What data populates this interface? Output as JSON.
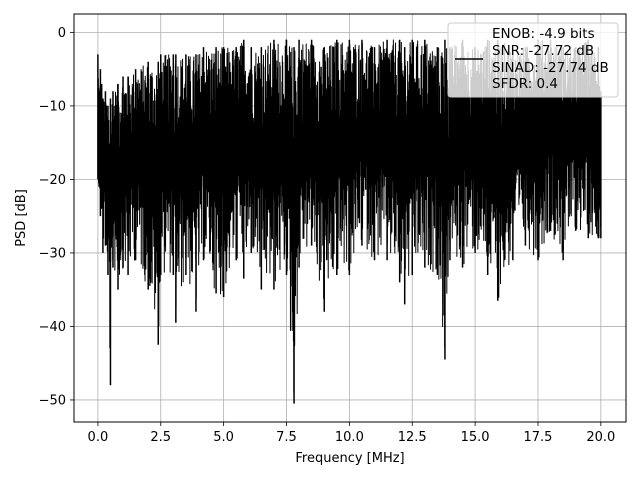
{
  "chart_data": {
    "type": "line",
    "xlabel": "Frequency [MHz]",
    "ylabel": "PSD [dB]",
    "xlim": [
      -0.95,
      21.0
    ],
    "ylim": [
      -53.0,
      2.5
    ],
    "xticks": [
      0.0,
      2.5,
      5.0,
      7.5,
      10.0,
      12.5,
      15.0,
      17.5,
      20.0
    ],
    "xtick_labels": [
      "0.0",
      "2.5",
      "5.0",
      "7.5",
      "10.0",
      "12.5",
      "15.0",
      "17.5",
      "20.0"
    ],
    "yticks": [
      0,
      -10,
      -20,
      -30,
      -40,
      -50
    ],
    "ytick_labels": [
      "0",
      "−10",
      "−20",
      "−30",
      "−40",
      "−50"
    ],
    "grid": true,
    "legend_position": "top-right",
    "legend_entries": [
      "ENOB: -4.9 bits",
      "SNR: -27.72 dB",
      "SINAD: -27.74 dB",
      "SFDR: 0.4"
    ],
    "line_color": "#000000",
    "series": [
      {
        "x": [
          0.0,
          0.05,
          0.1,
          0.15,
          0.2,
          0.3,
          0.4,
          0.5,
          0.6,
          0.8,
          1.0,
          1.2,
          1.5,
          2.0,
          2.4,
          2.5,
          3.0,
          3.1,
          3.5,
          3.9,
          4.2,
          4.7,
          5.0,
          5.5,
          5.8,
          6.1,
          6.5,
          7.0,
          7.5,
          7.8,
          8.0,
          8.5,
          9.0,
          9.5,
          10.0,
          10.5,
          11.0,
          11.5,
          12.0,
          12.2,
          12.5,
          13.0,
          13.5,
          13.8,
          14.0,
          14.5,
          15.0,
          15.5,
          15.9,
          16.5,
          17.0,
          17.5,
          18.0,
          18.5,
          19.0,
          19.5,
          19.9,
          20.0
        ],
        "y_top": [
          -3,
          -8,
          -5,
          -7,
          -9,
          -8,
          -10,
          -9,
          -8,
          -7,
          -6,
          -6,
          -5,
          -4,
          -4,
          -3,
          -3,
          -3,
          -3,
          -3,
          -2,
          -2,
          -2,
          -2,
          -1,
          -2,
          -2,
          -1,
          -1,
          -2,
          -1,
          -1,
          -2,
          -1,
          -1,
          -1,
          -2,
          -1,
          -1,
          -2,
          -1,
          -1,
          -2,
          -1,
          -2,
          -1,
          -2,
          -1,
          -1,
          -2,
          -2,
          -1,
          -1,
          -2,
          -2,
          -1,
          -2,
          -8
        ],
        "y_bottom": [
          -20,
          -21,
          -25,
          -24,
          -30,
          -29,
          -33,
          -48,
          -32,
          -35,
          -32,
          -33,
          -31,
          -35,
          -42.5,
          -33,
          -33,
          -39.5,
          -33,
          -38,
          -31,
          -35.5,
          -36,
          -31,
          -33.5,
          -30,
          -35,
          -35,
          -33,
          -50.5,
          -32,
          -29,
          -38,
          -33,
          -33,
          -29,
          -31,
          -31,
          -34,
          -37,
          -33,
          -32,
          -33,
          -44.5,
          -31,
          -32,
          -30,
          -33,
          -36.5,
          -31,
          -29,
          -31,
          -27,
          -31,
          -27,
          -28,
          -28,
          -28
        ]
      }
    ]
  }
}
